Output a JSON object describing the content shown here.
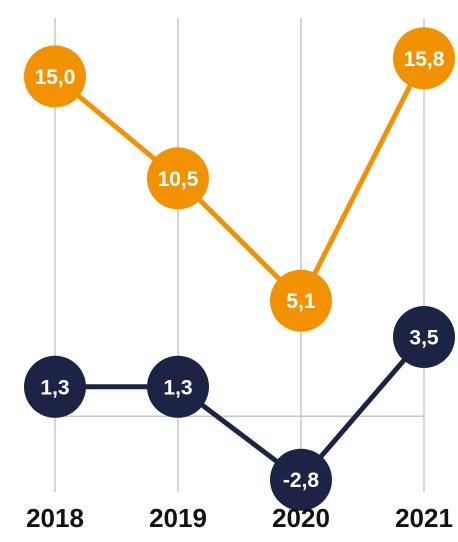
{
  "chart_data": {
    "type": "line",
    "categories": [
      "2018",
      "2019",
      "2020",
      "2021"
    ],
    "series": [
      {
        "values": [
          15.0,
          10.5,
          5.1,
          15.8
        ],
        "labels": [
          "15,0",
          "10,5",
          "5,1",
          "15,8"
        ],
        "color": "#F39200"
      },
      {
        "values": [
          1.3,
          1.3,
          -2.8,
          3.5
        ],
        "labels": [
          "1,3",
          "1,3",
          "-2,8",
          "3,5"
        ],
        "color": "#1B2444"
      }
    ],
    "xlabel": "",
    "ylabel": "",
    "ylim": [
      -4,
      17
    ],
    "grid": "vertical",
    "zero_line": true,
    "legend": "none"
  }
}
